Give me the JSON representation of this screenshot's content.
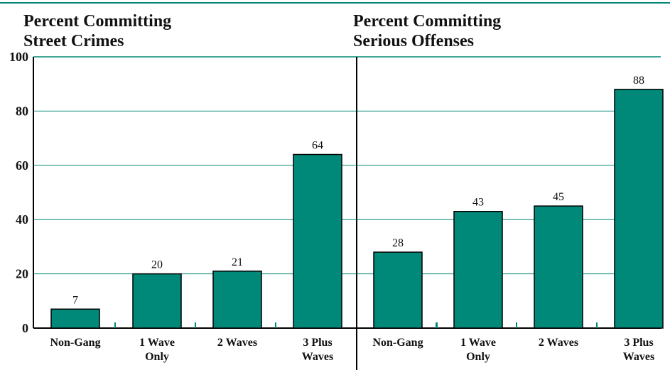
{
  "chart_data": [
    {
      "type": "bar",
      "title": "Percent Committing Street Crimes",
      "title_lines": [
        "Percent Committing",
        "Street Crimes"
      ],
      "categories": [
        "Non-Gang",
        "1 Wave Only",
        "2 Waves",
        "3 Plus Waves"
      ],
      "category_lines": [
        [
          "Non-Gang"
        ],
        [
          "1 Wave",
          "Only"
        ],
        [
          "2 Waves"
        ],
        [
          "3 Plus",
          "Waves"
        ]
      ],
      "values": [
        7,
        20,
        21,
        64
      ],
      "ylim": [
        0,
        100
      ],
      "yticks": [
        "0",
        "20",
        "40",
        "60",
        "80",
        "100"
      ],
      "grid": true
    },
    {
      "type": "bar",
      "title": "Percent Committing Serious Offenses",
      "title_lines": [
        "Percent Committing",
        "Serious Offenses"
      ],
      "categories": [
        "Non-Gang",
        "1 Wave Only",
        "2 Waves",
        "3 Plus Waves"
      ],
      "category_lines": [
        [
          "Non-Gang"
        ],
        [
          "1 Wave",
          "Only"
        ],
        [
          "2 Waves"
        ],
        [
          "3 Plus",
          "Waves"
        ]
      ],
      "values": [
        28,
        43,
        45,
        88
      ],
      "ylim": [
        0,
        100
      ],
      "grid": true
    }
  ],
  "colors": {
    "bar": "#008878",
    "grid": "#008878",
    "axis": "#000000"
  }
}
